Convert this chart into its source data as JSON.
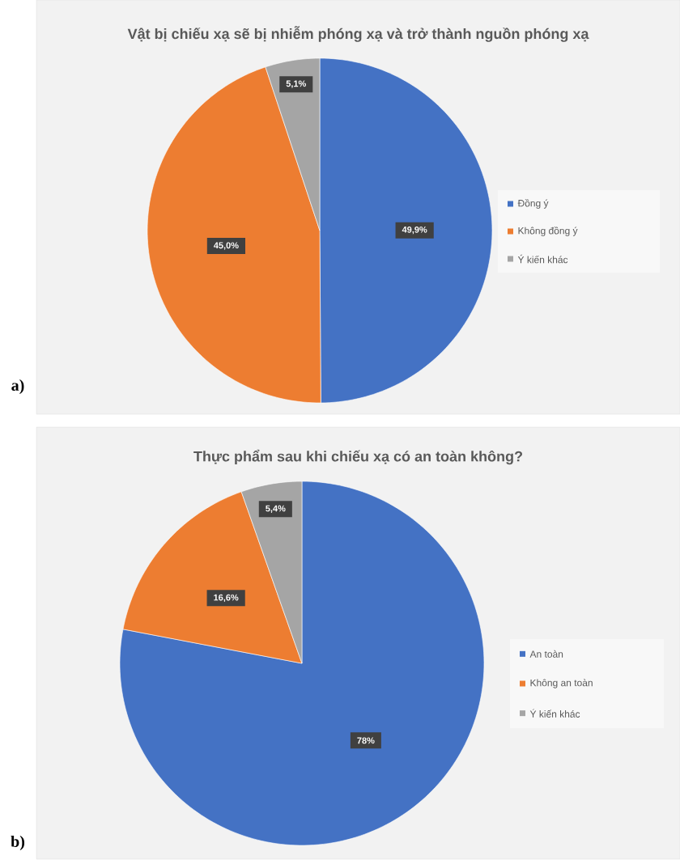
{
  "chart_data": [
    {
      "type": "pie",
      "title": "Vật bị chiếu xạ sẽ bị nhiễm phóng xạ và trở thành nguồn phóng xạ",
      "categories": [
        "Đồng ý",
        "Không đồng ý",
        "Ý kiến khác"
      ],
      "values": [
        49.9,
        45.0,
        5.1
      ],
      "value_labels": [
        "49,9%",
        "45,0%",
        "5,1%"
      ],
      "colors": [
        "#4472c4",
        "#ed7d31",
        "#a5a5a5"
      ],
      "legend": "right",
      "annotations": [
        "a)"
      ]
    },
    {
      "type": "pie",
      "title": "Thực phẩm sau khi chiếu xạ có an toàn không?",
      "categories": [
        "An toàn",
        "Không an toàn",
        "Ý kiến khác"
      ],
      "values": [
        78,
        16.6,
        5.4
      ],
      "value_labels": [
        "78%",
        "16,6%",
        "5,4%"
      ],
      "colors": [
        "#4472c4",
        "#ed7d31",
        "#a5a5a5"
      ],
      "legend": "right",
      "annotations": [
        "b)"
      ]
    }
  ]
}
